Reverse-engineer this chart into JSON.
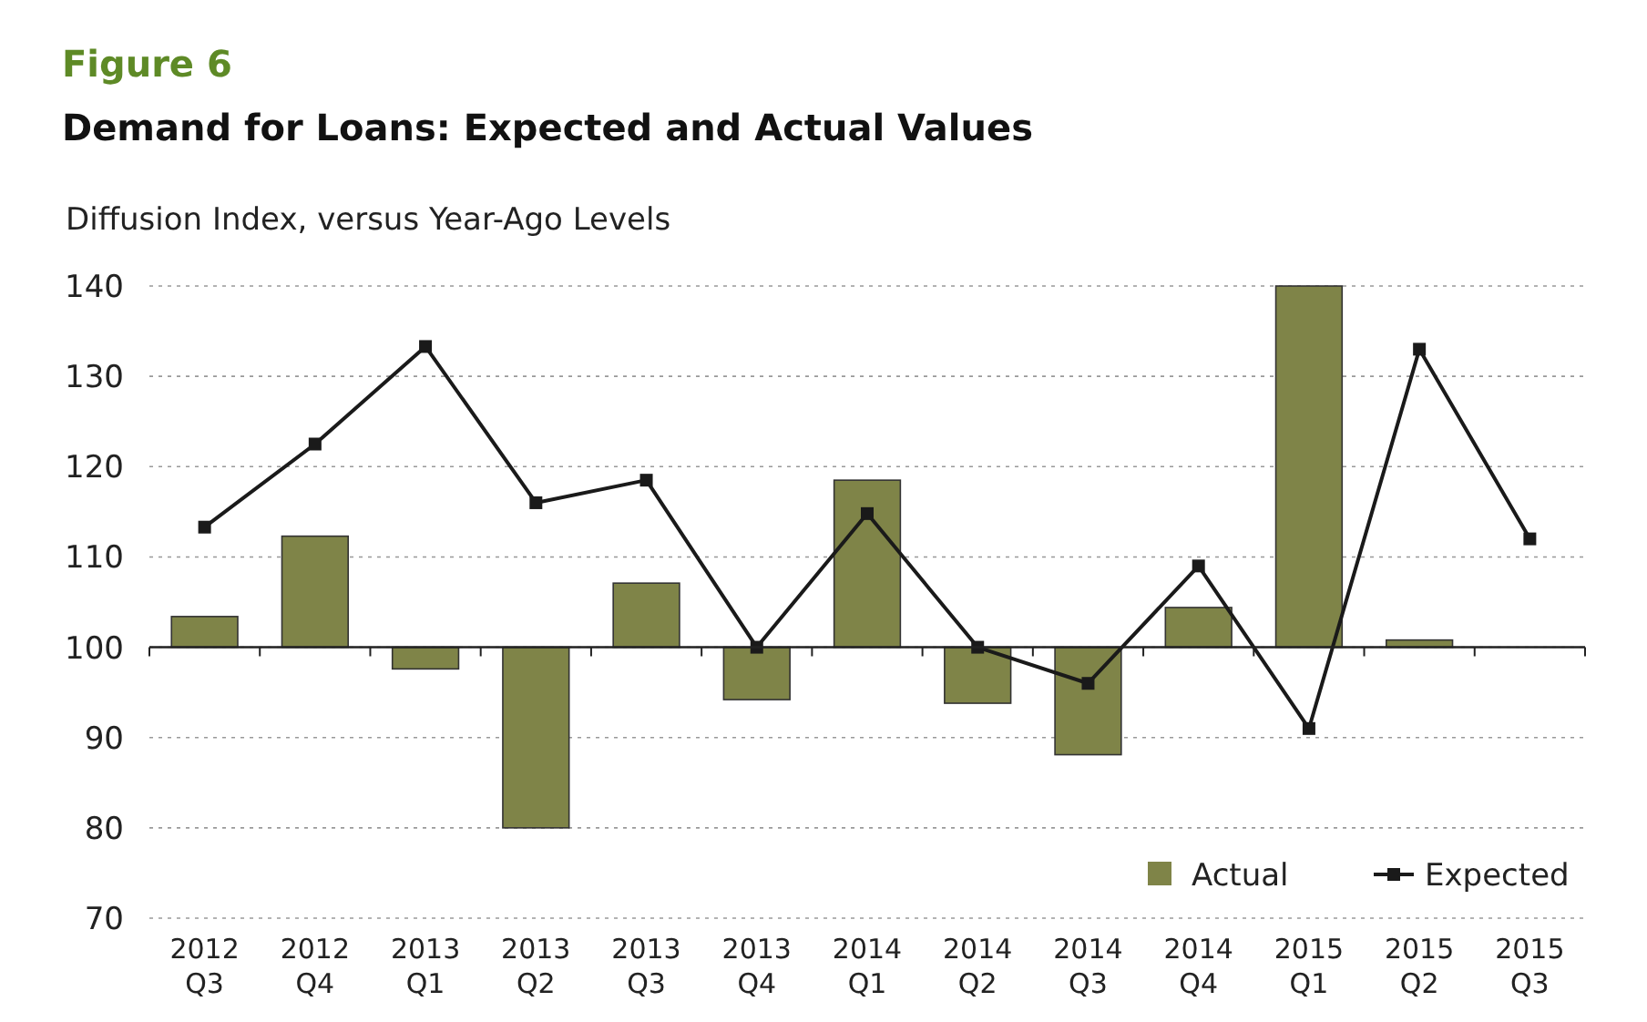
{
  "chart_data": {
    "type": "bar",
    "title": "Figure 6",
    "subtitle": "Demand for Loans: Expected and Actual Values",
    "ylabel": "Diffusion Index, versus Year-Ago Levels",
    "categories": [
      "2012\nQ3",
      "2012\nQ4",
      "2013\nQ1",
      "2013\nQ2",
      "2013\nQ3",
      "2013\nQ4",
      "2014\nQ1",
      "2014\nQ2",
      "2014\nQ3",
      "2014\nQ4",
      "2015\nQ1",
      "2015\nQ2",
      "2015\nQ3"
    ],
    "series": [
      {
        "name": "Actual",
        "color": "#7f8448",
        "base": [
          100,
          100,
          100,
          100,
          100,
          100,
          100,
          100,
          100,
          100,
          100,
          100,
          null
        ],
        "values": [
          3.4,
          12.3,
          -2.4,
          -20,
          7.1,
          -5.8,
          18.5,
          -6.2,
          -11.9,
          4.4,
          40,
          0.8,
          null
        ]
      },
      {
        "name": "Expected",
        "type": "line",
        "color": "#1a1a1a",
        "marker": "square",
        "values": [
          113.3,
          122.5,
          133.3,
          116,
          118.5,
          100,
          114.8,
          100,
          96,
          109,
          91,
          133,
          112
        ]
      }
    ],
    "ref_lines": [
      {
        "axis": "y",
        "value": 100
      }
    ],
    "ylim": [
      70,
      140
    ],
    "yticks": [
      70,
      80,
      90,
      100,
      110,
      120,
      130,
      140
    ],
    "grid": "y",
    "legend": "bottom right"
  }
}
